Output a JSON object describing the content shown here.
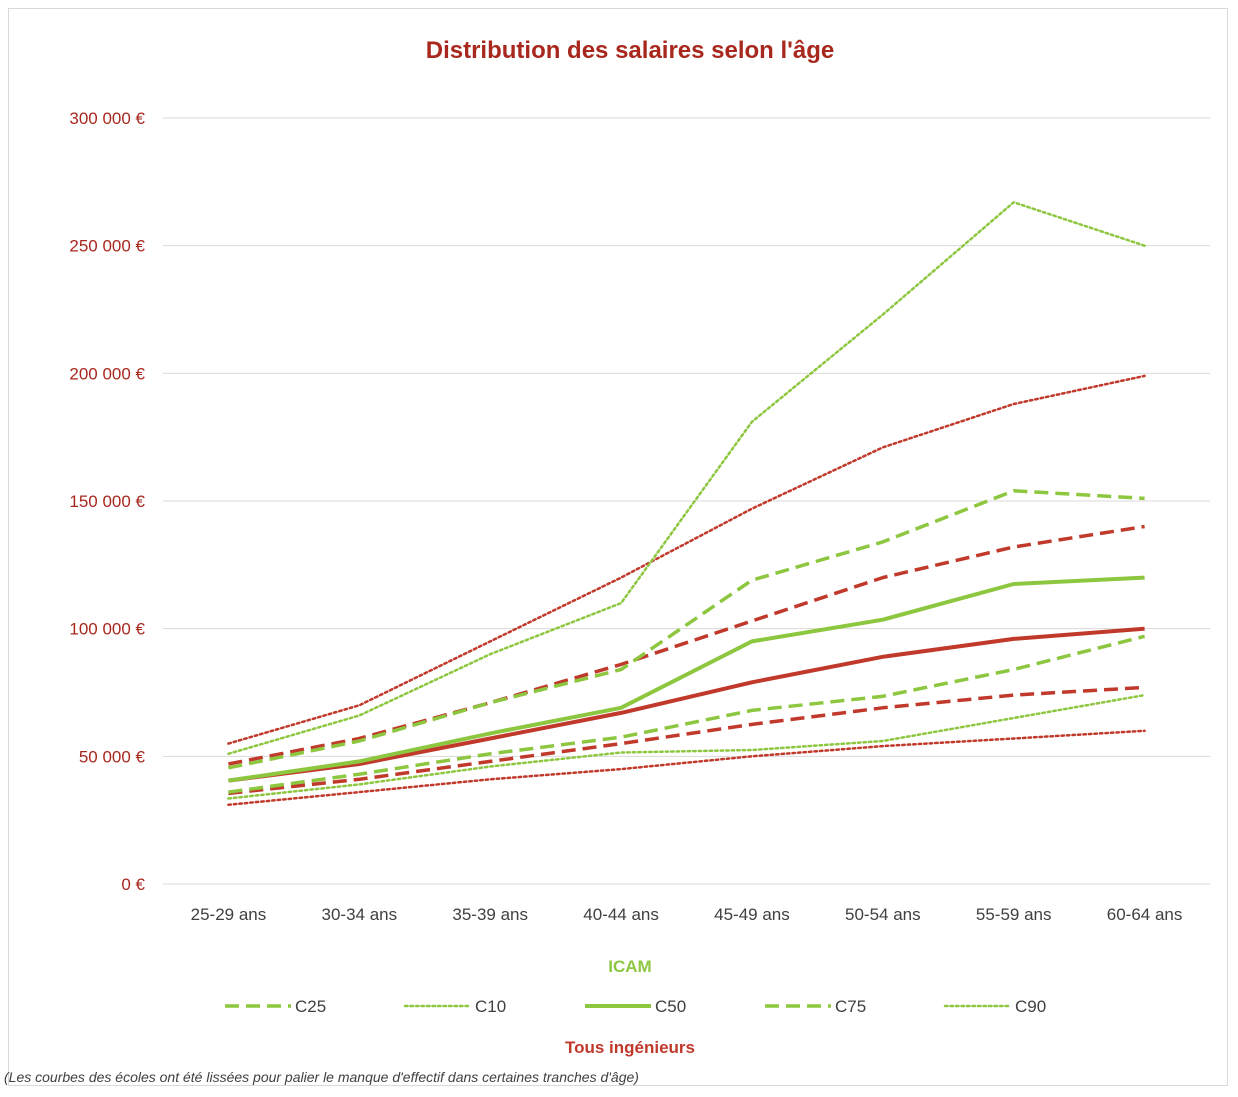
{
  "colors": {
    "icam": "#8DC63F",
    "tous": "#C0392B",
    "title": "#A8281E",
    "grid": "#d9d9d9",
    "tick": "#404040"
  },
  "footnote": "(Les courbes des écoles ont été lissées pour palier le manque d'effectif dans certaines tranches d'âge)",
  "chart_data": {
    "type": "line",
    "title": "Distribution des salaires selon l'âge",
    "xlabel": "",
    "ylabel": "",
    "ylim": [
      0,
      300000
    ],
    "yticks": [
      0,
      50000,
      100000,
      150000,
      200000,
      250000,
      300000
    ],
    "ytick_labels": [
      "0 €",
      "50 000 €",
      "100 000 €",
      "150 000 €",
      "200 000 €",
      "250 000 €",
      "300 000 €"
    ],
    "grid": true,
    "legend_position": "bottom",
    "categories": [
      "25-29 ans",
      "30-34 ans",
      "35-39 ans",
      "40-44 ans",
      "45-49 ans",
      "50-54 ans",
      "55-59 ans",
      "60-64 ans"
    ],
    "groups": [
      {
        "label": "ICAM",
        "color": "#8DC63F"
      },
      {
        "label": "Tous ingénieurs",
        "color": "#C0392B"
      }
    ],
    "legend": [
      {
        "name": "C25",
        "style": "dashed"
      },
      {
        "name": "C10",
        "style": "dotted"
      },
      {
        "name": "C50",
        "style": "solid"
      },
      {
        "name": "C75",
        "style": "dashed"
      },
      {
        "name": "C90",
        "style": "dotted"
      }
    ],
    "series": [
      {
        "group": "Tous ingénieurs",
        "name": "C90",
        "style": "dotted",
        "values": [
          55000,
          70000,
          95000,
          120000,
          147000,
          171000,
          188000,
          199000
        ]
      },
      {
        "group": "Tous ingénieurs",
        "name": "C75",
        "style": "dashed",
        "values": [
          47000,
          57000,
          71000,
          86000,
          103000,
          120000,
          132000,
          140000
        ]
      },
      {
        "group": "Tous ingénieurs",
        "name": "C50",
        "style": "solid",
        "values": [
          40500,
          47000,
          57000,
          67000,
          79000,
          89000,
          96000,
          100000
        ]
      },
      {
        "group": "Tous ingénieurs",
        "name": "C25",
        "style": "dashed",
        "values": [
          35500,
          41000,
          48000,
          55000,
          62500,
          69000,
          74000,
          77000
        ]
      },
      {
        "group": "Tous ingénieurs",
        "name": "C10",
        "style": "dotted",
        "values": [
          31000,
          36000,
          41000,
          45000,
          50000,
          54000,
          57000,
          60000
        ]
      },
      {
        "group": "ICAM",
        "name": "C90",
        "style": "dotted",
        "values": [
          51000,
          66000,
          90000,
          110000,
          181000,
          223000,
          267000,
          250000
        ]
      },
      {
        "group": "ICAM",
        "name": "C75",
        "style": "dashed",
        "values": [
          45500,
          56000,
          71000,
          84000,
          119000,
          134000,
          154000,
          151000
        ]
      },
      {
        "group": "ICAM",
        "name": "C50",
        "style": "solid",
        "values": [
          40500,
          48000,
          59000,
          69000,
          95000,
          103500,
          117500,
          120000
        ]
      },
      {
        "group": "ICAM",
        "name": "C25",
        "style": "dashed",
        "values": [
          36000,
          43000,
          51000,
          57500,
          68000,
          73500,
          84000,
          97000
        ]
      },
      {
        "group": "ICAM",
        "name": "C10",
        "style": "dotted",
        "values": [
          33500,
          39000,
          46000,
          51500,
          52500,
          56000,
          65000,
          74000
        ]
      }
    ]
  }
}
